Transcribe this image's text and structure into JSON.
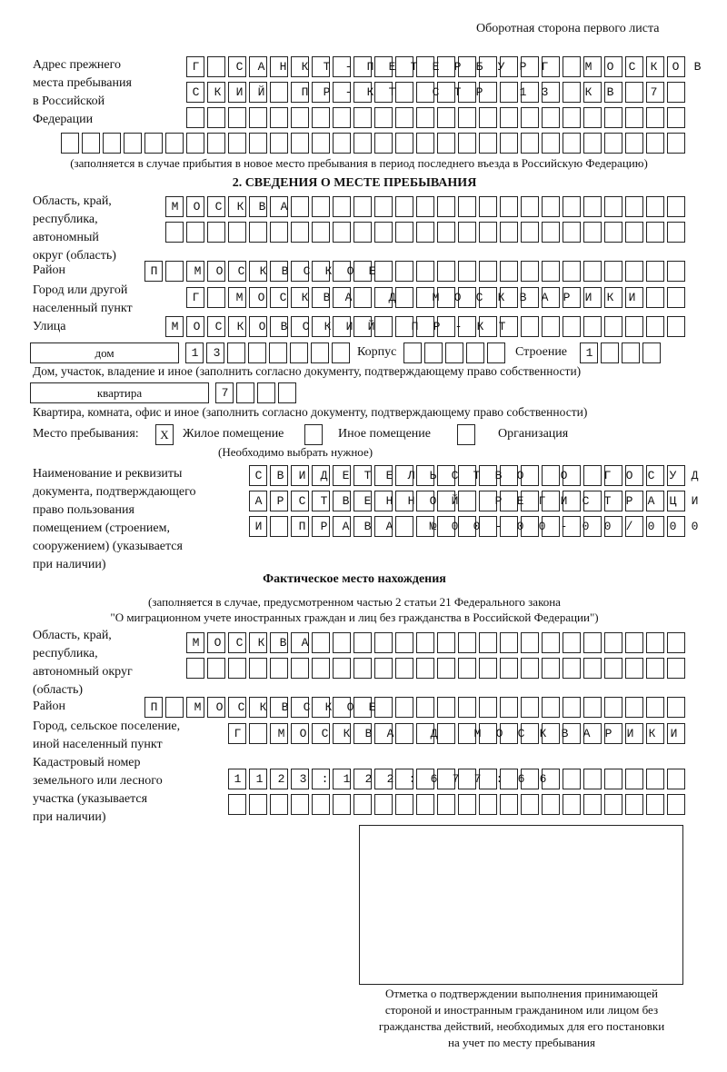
{
  "header": "Оборотная сторона первого листа",
  "prev_address": {
    "label": [
      "Адрес прежнего",
      "места пребывания",
      "в Российской",
      "Федерации"
    ],
    "rows": [
      "Г САНКТ-ПЕТЕРБУРГ МОСКОВ",
      "СКИЙ ПР-КТ СТР 13 КВ 7  ",
      "                        ",
      "                              "
    ],
    "note": "(заполняется в случае прибытия в новое место пребывания в период последнего въезда в Российскую Федерацию)"
  },
  "section2": {
    "title": "2. СВЕДЕНИЯ О МЕСТЕ ПРЕБЫВАНИЯ",
    "region_label": [
      "Область, край,",
      "республика,",
      "автономный",
      "округ (область)"
    ],
    "region_rows": [
      "МОСКВА                   ",
      "                         "
    ],
    "district_label": "Район",
    "district_row": "П МОСКВСКОЕ               ",
    "city_label": [
      "Город или другой",
      "населенный пункт"
    ],
    "city_row": "Г МОСКВА Д МОСКВАРИКИ   ",
    "street_label": "Улица",
    "street_row": "МОСКОВСКИЙ ПР-КТ         ",
    "house_type": "дом",
    "house_row": "13      ",
    "korpus_label": "Корпус",
    "korpus_row": "     ",
    "building_label": "Строение",
    "building_row": "1   ",
    "house_note": "Дом, участок, владение и иное (заполнить согласно документу, подтверждающему право собственности)",
    "flat_type": "квартира",
    "flat_row": "7   ",
    "flat_note": "Квартира, комната, офис и иное (заполнить согласно документу, подтверждающему право собственности)",
    "place_label": "Место пребывания:",
    "options": [
      {
        "label": "Жилое помещение",
        "mark": "X"
      },
      {
        "label": "Иное помещение",
        "mark": ""
      },
      {
        "label": "Организация",
        "mark": ""
      }
    ],
    "choose_note": "(Необходимо выбрать нужное)",
    "doc_label": [
      "Наименование и реквизиты",
      "документа, подтверждающего",
      "право пользования",
      "помещением (строением,",
      "сооружением) (указывается",
      "при наличии)"
    ],
    "doc_rows": [
      "СВИДЕТЕЛЬСТВО О ГОСУД",
      "АРСТВЕННОЙ РЕГИСТРАЦИ",
      "И ПРАВА №00-00-00/000"
    ]
  },
  "actual": {
    "title": "Фактическое место нахождения",
    "note1": "(заполняется в случае, предусмотренном частью 2 статьи 21 Федерального закона",
    "note2": "\"О миграционном учете иностранных граждан и лиц без гражданства в Российской Федерации\")",
    "region_label": [
      "Область, край,",
      "республика,",
      "автономный округ",
      "(область)"
    ],
    "region_rows": [
      "МОСКВА                  ",
      "                        "
    ],
    "district_label": "Район",
    "district_row": "П МОСКВСКОЕ               ",
    "city_label": [
      "Город, сельское поселение,",
      "иной населенный пункт"
    ],
    "city_row": "Г МОСКВА Д МОСКВАРИКИ ",
    "cadastre_label": [
      "Кадастровый номер",
      "земельного или лесного",
      "участка (указывается",
      "при наличии)"
    ],
    "cadastre_rows": [
      "1123:122:677:66       ",
      "                      "
    ]
  },
  "stamp_caption": [
    "Отметка о подтверждении выполнения принимающей",
    "стороной и иностранным гражданином или лицом без",
    "гражданства действий, необходимых для его постановки",
    "на учет по месту пребывания"
  ]
}
